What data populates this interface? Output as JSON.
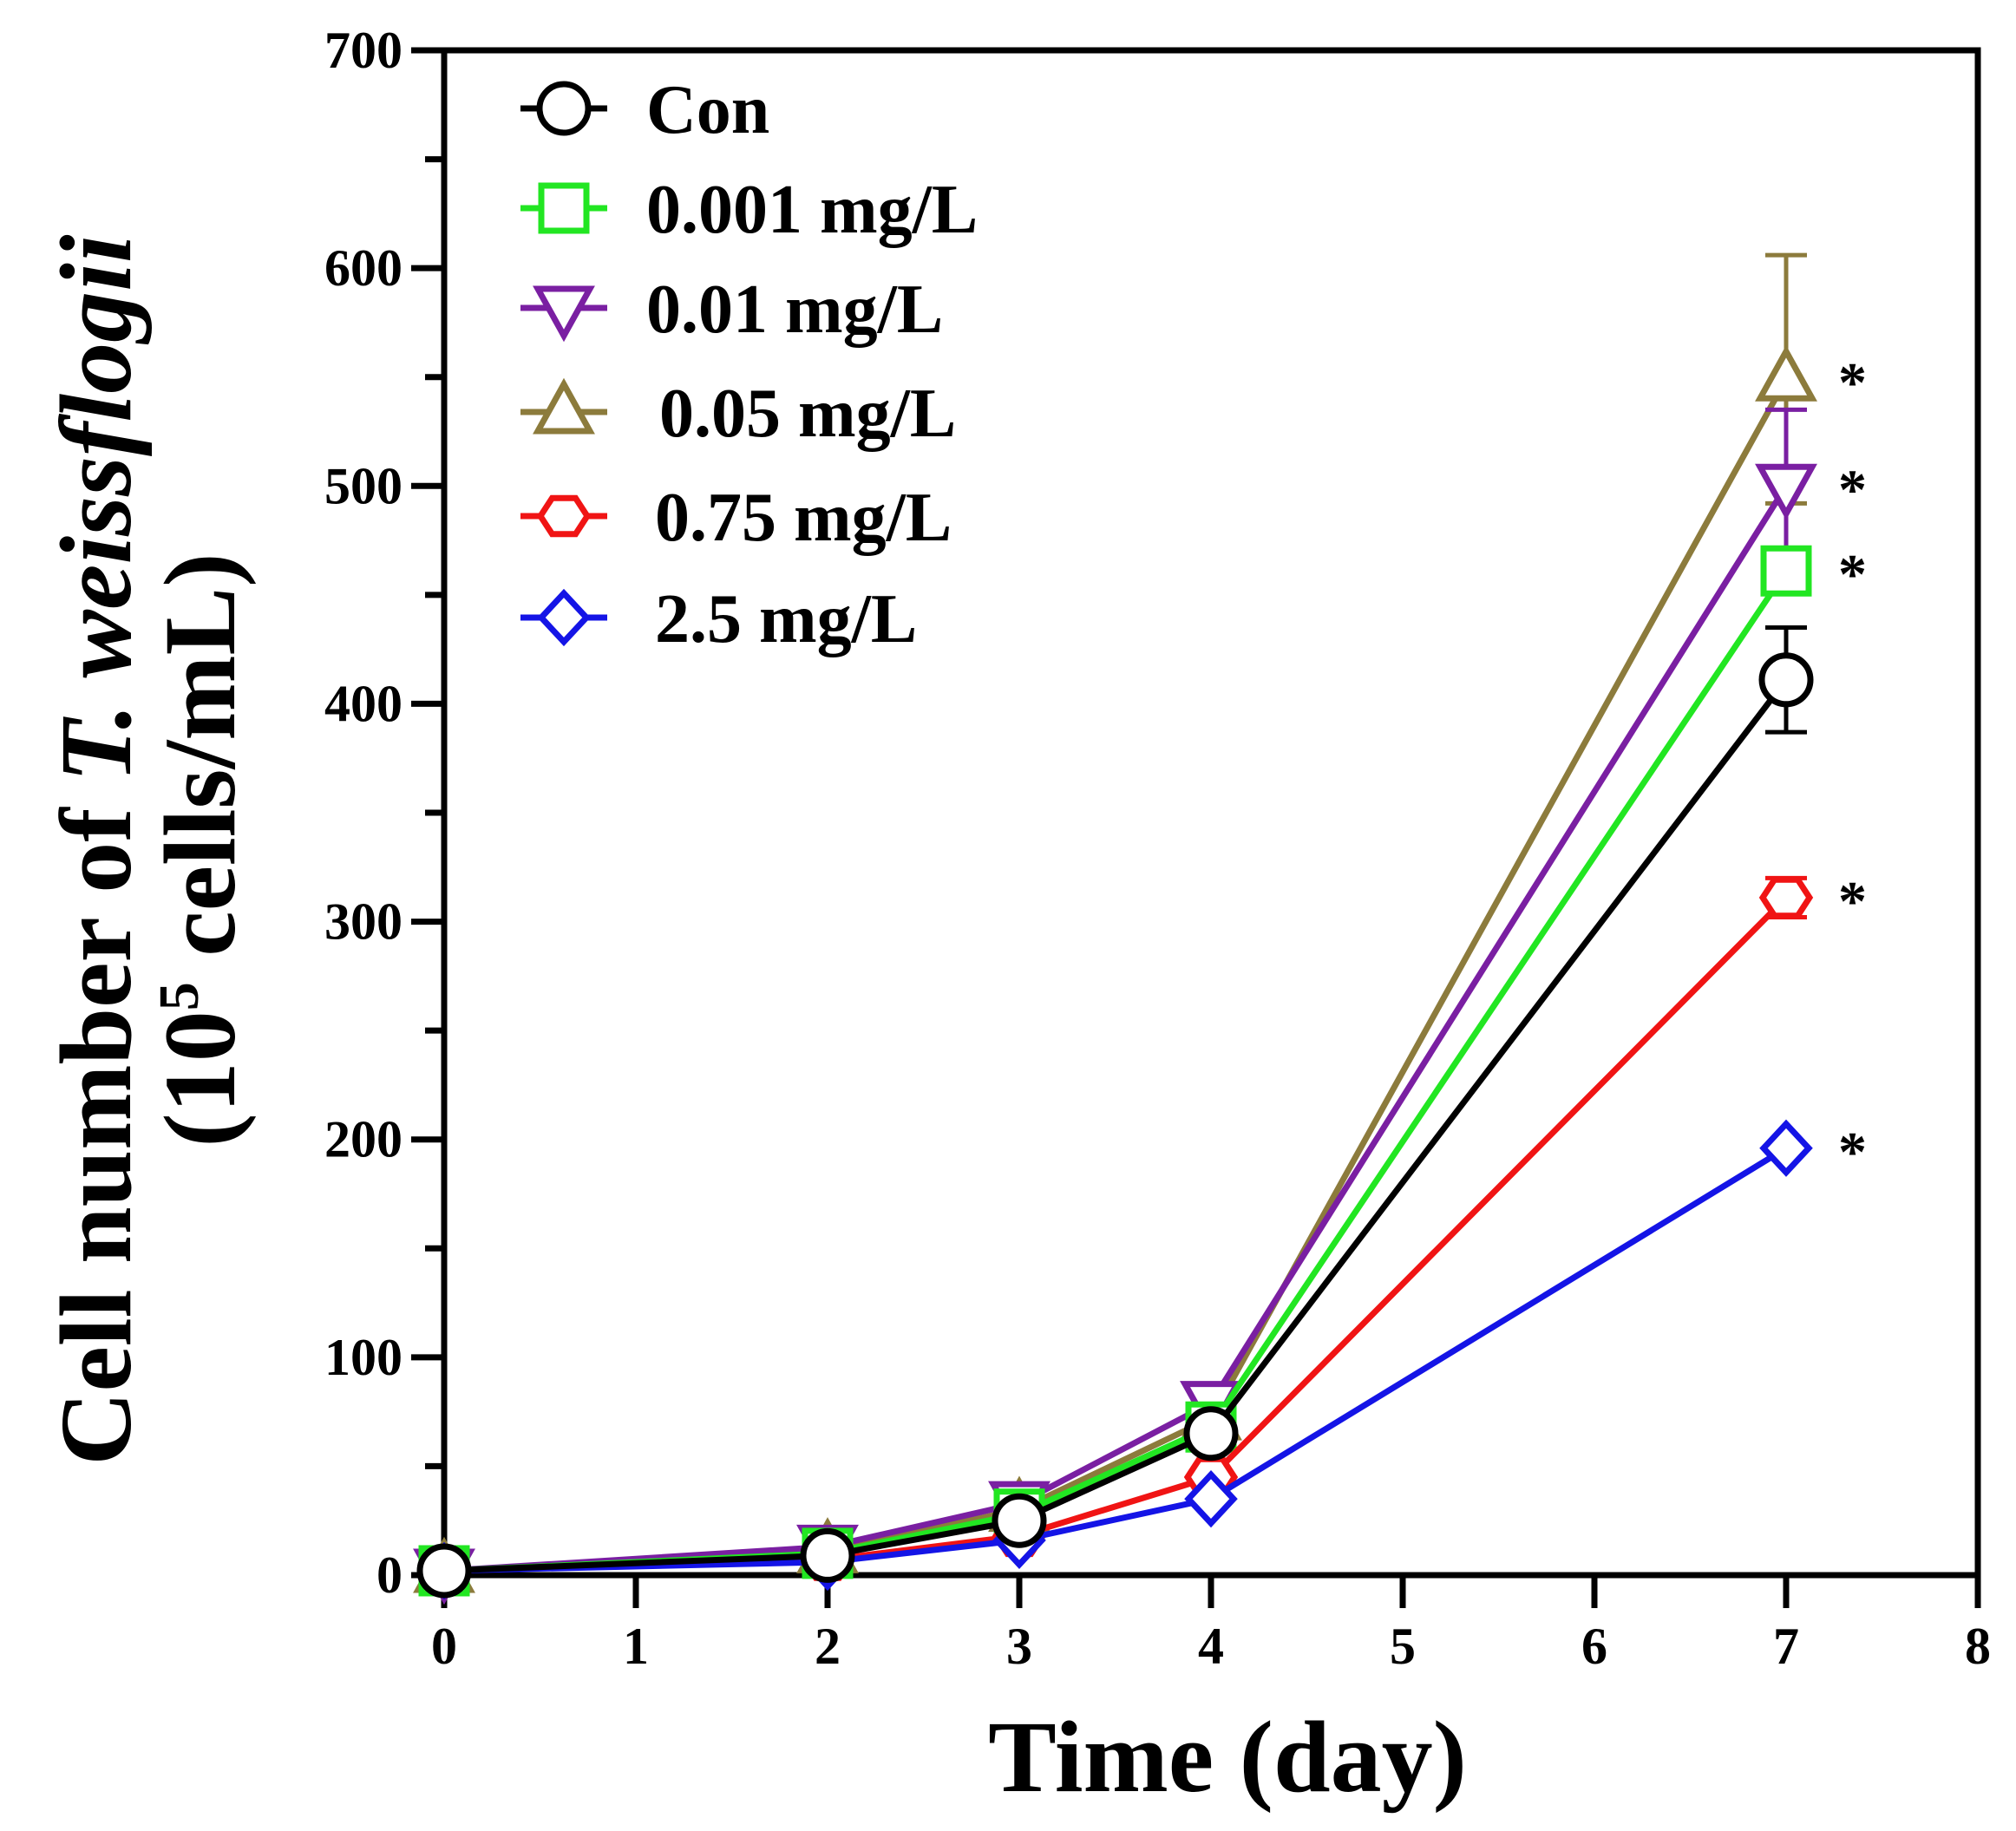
{
  "chart_data": {
    "type": "line",
    "title": "",
    "xlabel": "Time (day)",
    "ylabel_parts": {
      "prefix": "Cell number of ",
      "species": "T. weissflogii",
      "unit_open": "(10",
      "unit_exp": "5",
      "unit_close": " cells/mL)"
    },
    "xlim": [
      0,
      8
    ],
    "ylim": [
      0,
      700
    ],
    "xticks": [
      "0",
      "1",
      "2",
      "3",
      "4",
      "5",
      "6",
      "7",
      "8"
    ],
    "yticks": [
      "0",
      "100",
      "200",
      "300",
      "400",
      "500",
      "600",
      "700"
    ],
    "x": [
      0,
      2,
      3,
      4,
      7
    ],
    "legend_position": "top-left",
    "grid": false,
    "significance_mark": "*",
    "series": [
      {
        "name": "Con",
        "color": "#000000",
        "marker": "circle",
        "values": [
          2,
          9,
          25,
          65,
          411
        ],
        "err": [
          0,
          0,
          0,
          0,
          24
        ],
        "sig": false
      },
      {
        "name": "0.001 mg/L",
        "color": "#22e622",
        "marker": "square",
        "values": [
          2,
          10,
          28,
          68,
          461
        ],
        "err": [
          0,
          0,
          0,
          0,
          0
        ],
        "sig": true
      },
      {
        "name": "0.01 mg/L",
        "color": "#7a1fa2",
        "marker": "triangle-down",
        "values": [
          2,
          13,
          33,
          79,
          500
        ],
        "err": [
          0,
          0,
          0,
          0,
          35
        ],
        "sig": true
      },
      {
        "name": "0.05 mg/L",
        "color": "#8c7b3c",
        "marker": "triangle-up",
        "values": [
          2,
          11,
          30,
          72,
          549
        ],
        "err": [
          0,
          0,
          0,
          0,
          57
        ],
        "sig": true
      },
      {
        "name": "0.75 mg/L",
        "color": "#f01414",
        "marker": "hexagon",
        "values": [
          2,
          7,
          18,
          45,
          311
        ],
        "err": [
          0,
          0,
          0,
          0,
          9
        ],
        "sig": true
      },
      {
        "name": "2.5 mg/L",
        "color": "#1414e6",
        "marker": "diamond",
        "values": [
          2,
          6,
          16,
          35,
          196
        ],
        "err": [
          0,
          0,
          0,
          0,
          0
        ],
        "sig": true
      }
    ]
  }
}
